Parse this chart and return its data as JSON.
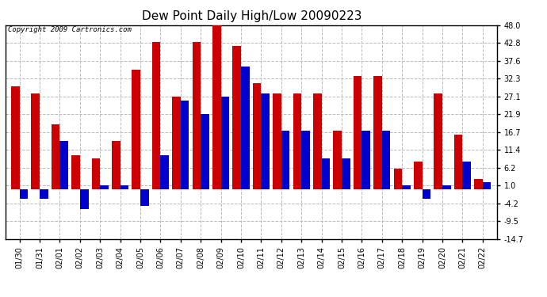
{
  "title": "Dew Point Daily High/Low 20090223",
  "copyright": "Copyright 2009 Cartronics.com",
  "dates": [
    "01/30",
    "01/31",
    "02/01",
    "02/02",
    "02/03",
    "02/04",
    "02/05",
    "02/06",
    "02/07",
    "02/08",
    "02/09",
    "02/10",
    "02/11",
    "02/12",
    "02/13",
    "02/14",
    "02/15",
    "02/16",
    "02/17",
    "02/18",
    "02/19",
    "02/20",
    "02/21",
    "02/22"
  ],
  "highs": [
    30.0,
    28.0,
    19.0,
    10.0,
    9.0,
    14.0,
    35.0,
    43.0,
    27.0,
    43.0,
    48.0,
    42.0,
    31.0,
    28.0,
    28.0,
    28.0,
    17.0,
    33.0,
    33.0,
    6.0,
    8.0,
    28.0,
    16.0,
    3.0
  ],
  "lows": [
    -3.0,
    -3.0,
    14.0,
    -6.0,
    1.0,
    1.0,
    -5.0,
    10.0,
    26.0,
    22.0,
    27.0,
    36.0,
    28.0,
    17.0,
    17.0,
    9.0,
    9.0,
    17.0,
    17.0,
    1.0,
    -3.0,
    1.0,
    8.0,
    2.0
  ],
  "high_color": "#cc0000",
  "low_color": "#0000cc",
  "bg_color": "#ffffff",
  "plot_bg_color": "#ffffff",
  "grid_color": "#bbbbbb",
  "ylim_min": -14.7,
  "ylim_max": 48.0,
  "yticks": [
    48.0,
    42.8,
    37.6,
    32.3,
    27.1,
    21.9,
    16.7,
    11.4,
    6.2,
    1.0,
    -4.2,
    -9.5,
    -14.7
  ],
  "bar_width": 0.42,
  "title_fontsize": 11,
  "tick_fontsize": 7,
  "copyright_fontsize": 6.5
}
